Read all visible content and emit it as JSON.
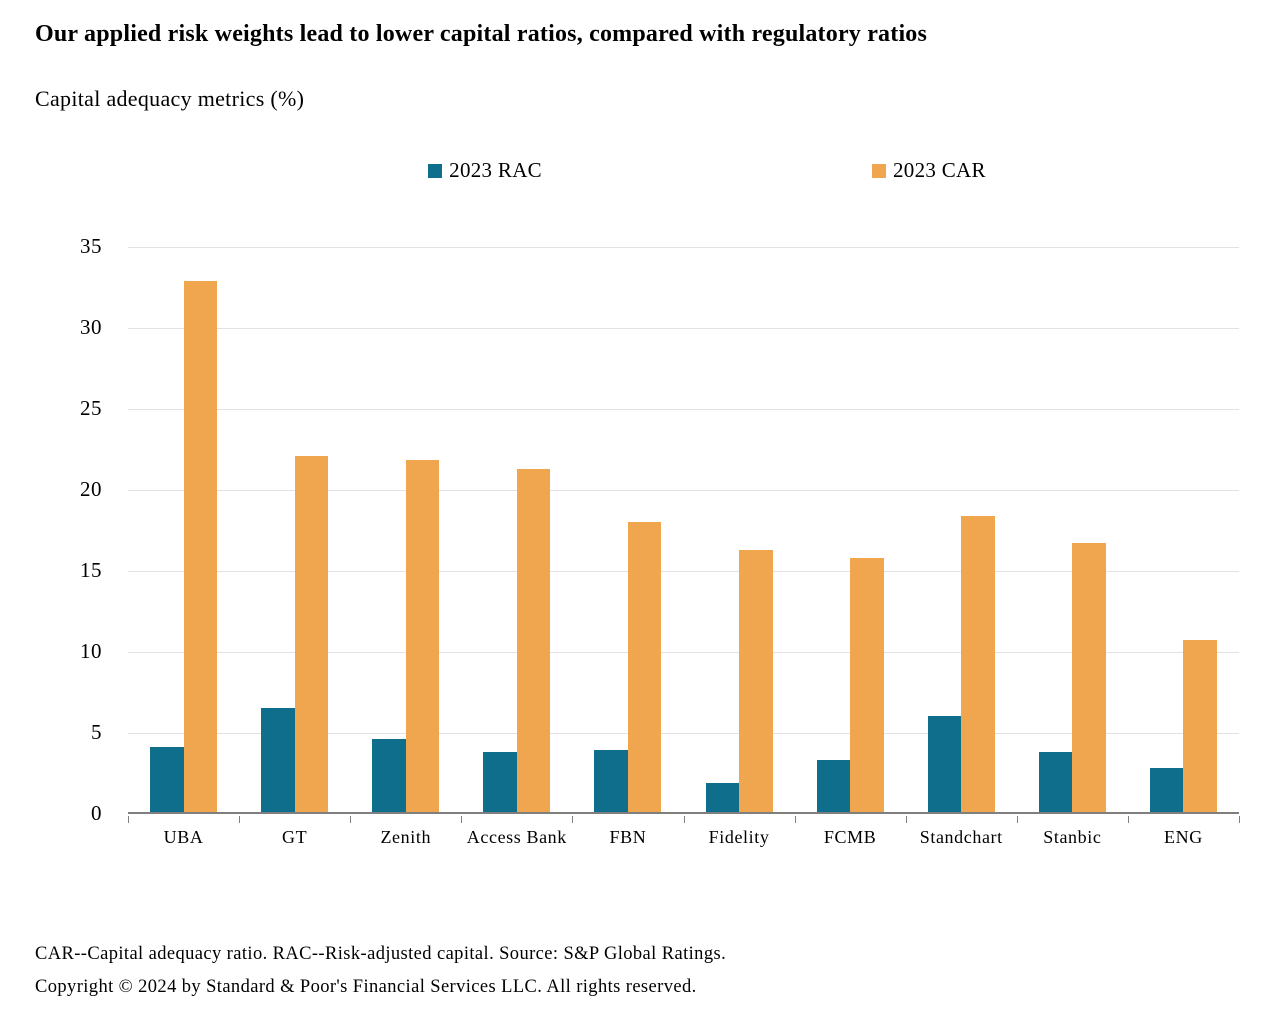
{
  "title": "Our applied risk weights lead to lower capital ratios, compared with regulatory ratios",
  "subtitle": "Capital adequacy metrics (%)",
  "footnotes": {
    "definitions": "CAR--Capital adequacy ratio. RAC--Risk-adjusted capital. Source: S&P Global Ratings.",
    "copyright": "Copyright © 2024 by Standard & Poor's Financial Services LLC. All rights reserved."
  },
  "colors": {
    "rac_teal": "#0f6e8c",
    "car_orange": "#f0a64e",
    "gridline": "#e2e2e2",
    "axis": "#7f7f7f",
    "text": "#000000",
    "background": "#ffffff"
  },
  "chart_data": {
    "type": "bar",
    "title": "Capital adequacy metrics (%)",
    "categories": [
      "UBA",
      "GT",
      "Zenith",
      "Access Bank",
      "FBN",
      "Fidelity",
      "FCMB",
      "Standchart",
      "Stanbic",
      "ENG"
    ],
    "series": [
      {
        "name": "2023 RAC",
        "color": "#0f6e8c",
        "values": [
          4.0,
          6.4,
          4.5,
          3.7,
          3.8,
          1.8,
          3.2,
          5.9,
          3.7,
          2.7
        ]
      },
      {
        "name": "2023 CAR",
        "color": "#f0a64e",
        "values": [
          32.8,
          22.0,
          21.7,
          21.2,
          17.9,
          16.2,
          15.7,
          18.3,
          16.6,
          10.6
        ]
      }
    ],
    "xlabel": "",
    "ylabel": "",
    "ylim": [
      0,
      35
    ],
    "yticks": [
      0,
      5,
      10,
      15,
      20,
      25,
      30,
      35
    ],
    "grid": true,
    "legend_position": "top-center"
  }
}
